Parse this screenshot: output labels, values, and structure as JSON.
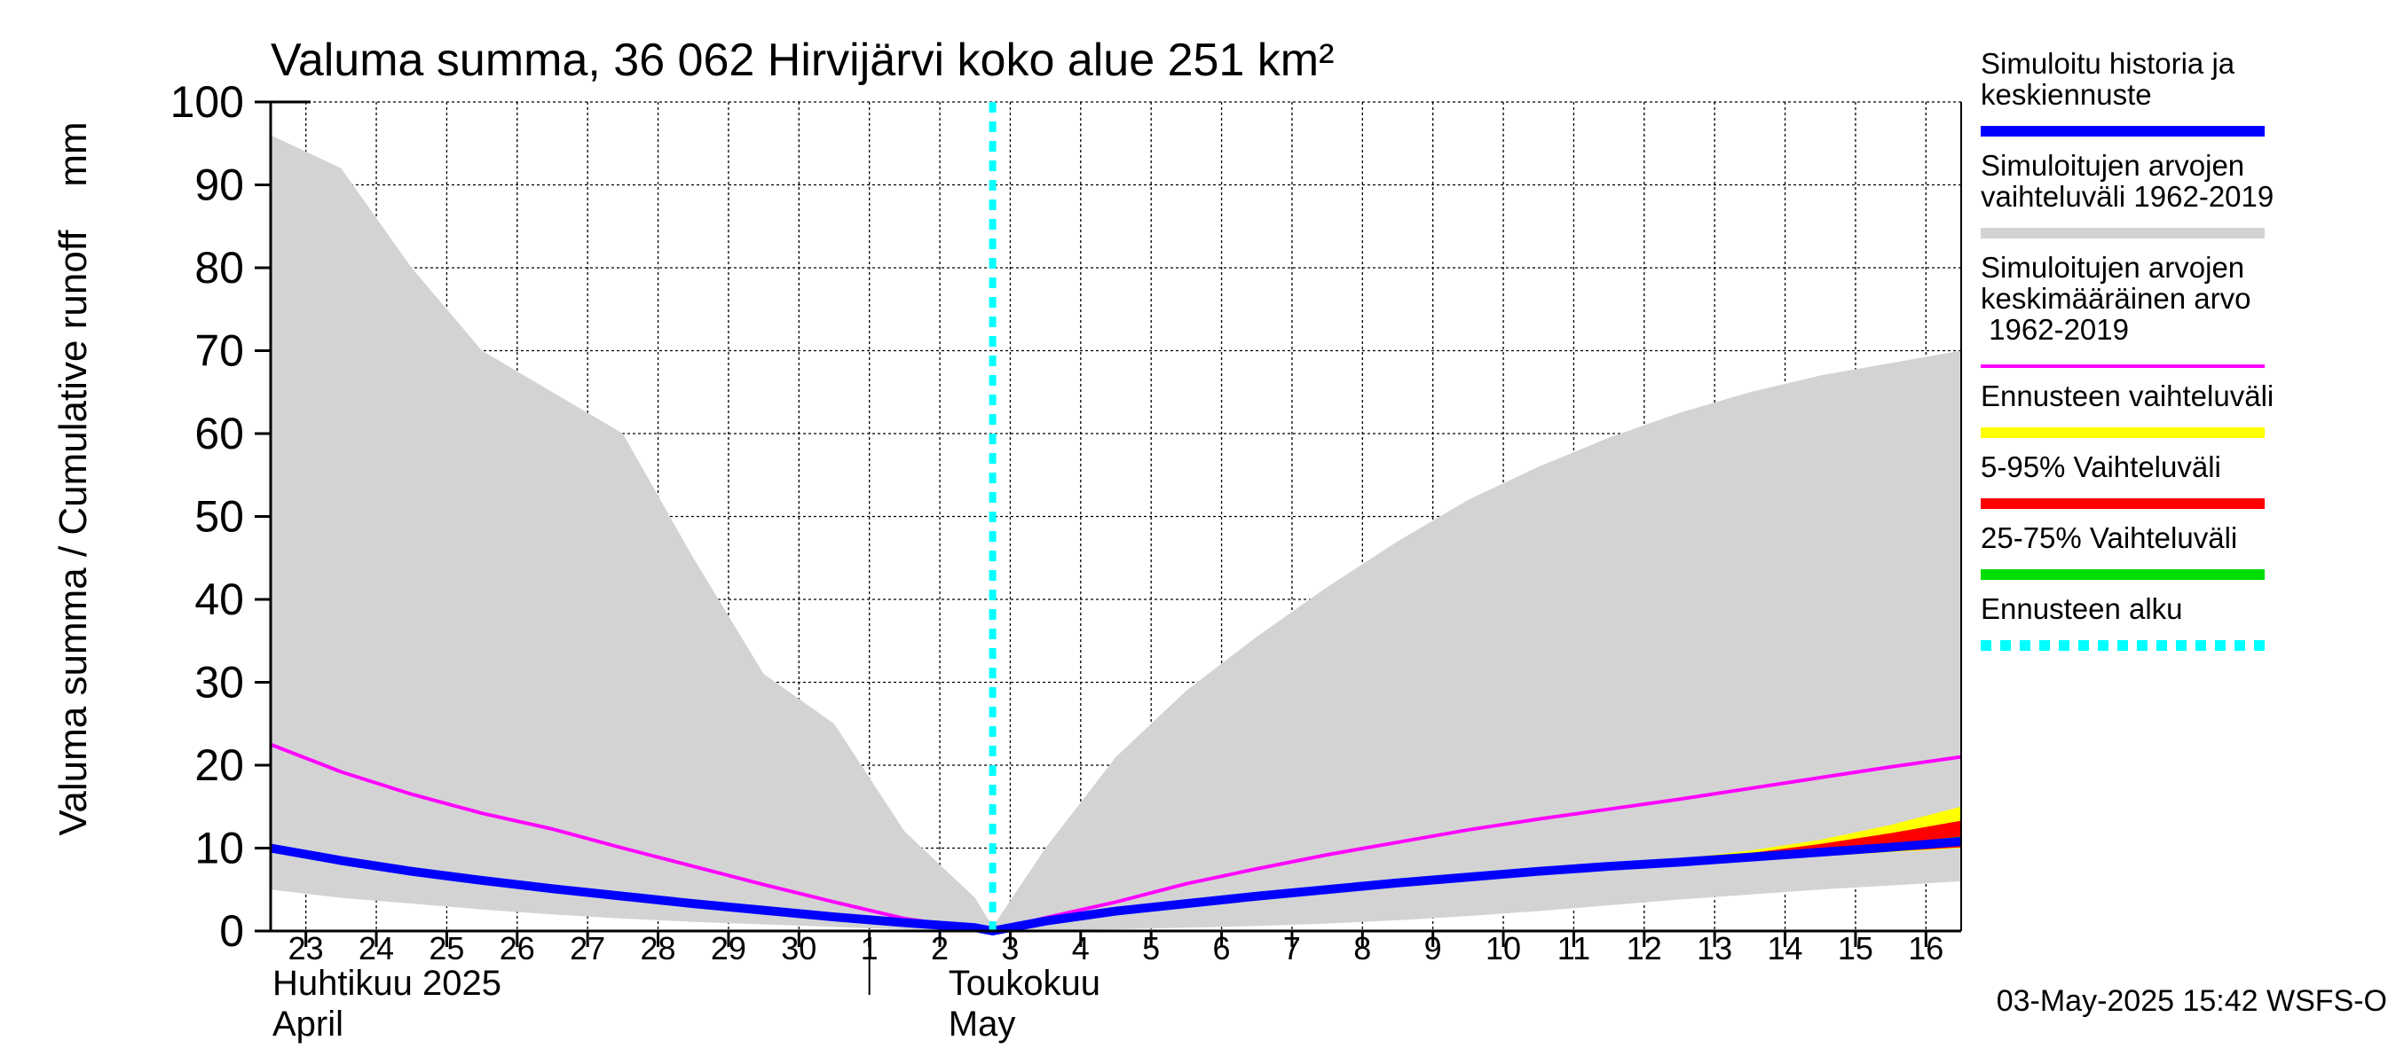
{
  "chart_data": {
    "type": "area",
    "title": "Valuma summa, 36 062 Hirvijärvi koko alue 251 km²",
    "ylabel": "Valuma summa / Cumulative runoff    mm",
    "ylim": [
      0,
      100
    ],
    "yticks": [
      0,
      10,
      20,
      30,
      40,
      50,
      60,
      70,
      80,
      90,
      100
    ],
    "xlim": [
      "2025-04-22T12:00",
      "2025-05-16T12:00"
    ],
    "xtick_days": [
      "2025-04-23",
      "2025-04-24",
      "2025-04-25",
      "2025-04-26",
      "2025-04-27",
      "2025-04-28",
      "2025-04-29",
      "2025-04-30",
      "2025-05-01",
      "2025-05-02",
      "2025-05-03",
      "2025-05-04",
      "2025-05-05",
      "2025-05-06",
      "2025-05-07",
      "2025-05-08",
      "2025-05-09",
      "2025-05-10",
      "2025-05-11",
      "2025-05-12",
      "2025-05-13",
      "2025-05-14",
      "2025-05-15",
      "2025-05-16"
    ],
    "xtick_labels": [
      "23",
      "24",
      "25",
      "26",
      "27",
      "28",
      "29",
      "30",
      "1",
      "2",
      "3",
      "4",
      "5",
      "6",
      "7",
      "8",
      "9",
      "10",
      "11",
      "12",
      "13",
      "14",
      "15",
      "16"
    ],
    "month_labels": [
      {
        "line1": "Huhtikuu  2025",
        "line2": "April",
        "date": "2025-04-22T12:00"
      },
      {
        "line1": "Toukokuu",
        "line2": "May",
        "date": "2025-05-02T12:00"
      }
    ],
    "grid": true,
    "forecast_start": "2025-05-02T18:00",
    "series": [
      {
        "name": "Simuloitujen arvojen vaihteluväli 1962-2019",
        "kind": "band",
        "color": "#d3d3d3",
        "x": [
          "2025-04-22T12:00",
          "2025-04-23T12:00",
          "2025-04-24T12:00",
          "2025-04-25T12:00",
          "2025-04-26T12:00",
          "2025-04-27T12:00",
          "2025-04-28T12:00",
          "2025-04-29T12:00",
          "2025-04-30T12:00",
          "2025-05-01T12:00",
          "2025-05-02T12:00",
          "2025-05-02T18:00",
          "2025-05-03T12:00",
          "2025-05-04T12:00",
          "2025-05-05T12:00",
          "2025-05-06T12:00",
          "2025-05-07T12:00",
          "2025-05-08T12:00",
          "2025-05-09T12:00",
          "2025-05-10T12:00",
          "2025-05-11T12:00",
          "2025-05-12T12:00",
          "2025-05-13T12:00",
          "2025-05-14T12:00",
          "2025-05-15T12:00",
          "2025-05-16T12:00"
        ],
        "upper": [
          96,
          92,
          80,
          70,
          65,
          60,
          45,
          31,
          25,
          12,
          4,
          0.5,
          10,
          21,
          29,
          35.5,
          41.5,
          47,
          52,
          56,
          59.5,
          62.5,
          65,
          67,
          68.5,
          70
        ],
        "lower": [
          5,
          4,
          3.3,
          2.6,
          2,
          1.5,
          1.1,
          0.8,
          0.5,
          0.2,
          0.1,
          0,
          0.05,
          0.2,
          0.4,
          0.6,
          0.9,
          1.3,
          1.8,
          2.4,
          3.1,
          3.8,
          4.4,
          5,
          5.5,
          6
        ]
      },
      {
        "name": "Ennusteen vaihteluväli",
        "kind": "band",
        "color": "#ffff00",
        "x": [
          "2025-05-02T18:00",
          "2025-05-03T12:00",
          "2025-05-04T12:00",
          "2025-05-05T12:00",
          "2025-05-06T12:00",
          "2025-05-07T12:00",
          "2025-05-08T12:00",
          "2025-05-09T12:00",
          "2025-05-10T12:00",
          "2025-05-11T12:00",
          "2025-05-12T12:00",
          "2025-05-13T12:00",
          "2025-05-14T12:00",
          "2025-05-15T12:00",
          "2025-05-16T12:00"
        ],
        "upper": [
          0.2,
          1.2,
          2.4,
          3.3,
          4.2,
          5,
          5.8,
          6.5,
          7.2,
          7.9,
          8.7,
          9.7,
          11,
          12.8,
          15
        ],
        "lower": [
          0.2,
          1.2,
          2.4,
          3.3,
          4.2,
          5,
          5.8,
          6.5,
          7.1,
          7.6,
          8.1,
          8.6,
          9,
          9.5,
          10
        ]
      },
      {
        "name": "5-95% Vaihteluväli",
        "kind": "band",
        "color": "#ff0000",
        "x": [
          "2025-05-02T18:00",
          "2025-05-03T12:00",
          "2025-05-04T12:00",
          "2025-05-05T12:00",
          "2025-05-06T12:00",
          "2025-05-07T12:00",
          "2025-05-08T12:00",
          "2025-05-09T12:00",
          "2025-05-10T12:00",
          "2025-05-11T12:00",
          "2025-05-12T12:00",
          "2025-05-13T12:00",
          "2025-05-14T12:00",
          "2025-05-15T12:00",
          "2025-05-16T12:00"
        ],
        "upper": [
          0.2,
          1.2,
          2.4,
          3.3,
          4.2,
          5,
          5.8,
          6.5,
          7.2,
          7.9,
          8.6,
          9.4,
          10.5,
          11.8,
          13.3
        ],
        "lower": [
          0.2,
          1.2,
          2.4,
          3.3,
          4.2,
          5,
          5.8,
          6.5,
          7.1,
          7.6,
          8.1,
          8.6,
          9.1,
          9.6,
          10.1
        ]
      },
      {
        "name": "25-75% Vaihteluväli",
        "kind": "band",
        "color": "#00dd00",
        "x": [
          "2025-05-02T18:00",
          "2025-05-03T12:00",
          "2025-05-04T12:00",
          "2025-05-05T12:00",
          "2025-05-06T12:00",
          "2025-05-07T12:00",
          "2025-05-08T12:00",
          "2025-05-09T12:00",
          "2025-05-10T12:00",
          "2025-05-11T12:00",
          "2025-05-12T12:00",
          "2025-05-13T12:00",
          "2025-05-14T12:00",
          "2025-05-15T12:00",
          "2025-05-16T12:00"
        ],
        "upper": [
          0.2,
          1.2,
          2.4,
          3.3,
          4.2,
          5,
          5.8,
          6.5,
          7.2,
          7.8,
          8.4,
          9,
          9.7,
          10.5,
          11.4
        ],
        "lower": [
          0.2,
          1.2,
          2.4,
          3.3,
          4.2,
          5,
          5.8,
          6.5,
          7.1,
          7.7,
          8.2,
          8.7,
          9.2,
          9.8,
          10.4
        ]
      },
      {
        "name": "Simuloitujen arvojen keskimääräinen arvo 1962-2019",
        "kind": "line",
        "color": "#ff00ff",
        "x": [
          "2025-04-22T12:00",
          "2025-04-23T12:00",
          "2025-04-24T12:00",
          "2025-04-25T12:00",
          "2025-04-26T12:00",
          "2025-04-27T12:00",
          "2025-04-28T12:00",
          "2025-04-29T12:00",
          "2025-04-30T12:00",
          "2025-05-01T12:00",
          "2025-05-02T12:00",
          "2025-05-02T18:00",
          "2025-05-03T12:00",
          "2025-05-04T12:00",
          "2025-05-05T12:00",
          "2025-05-06T12:00",
          "2025-05-07T12:00",
          "2025-05-08T12:00",
          "2025-05-09T12:00",
          "2025-05-10T12:00",
          "2025-05-11T12:00",
          "2025-05-12T12:00",
          "2025-05-13T12:00",
          "2025-05-14T12:00",
          "2025-05-15T12:00",
          "2025-05-16T12:00"
        ],
        "y": [
          22.5,
          19.2,
          16.5,
          14.2,
          12.3,
          10,
          7.8,
          5.6,
          3.5,
          1.5,
          0.3,
          0,
          1.6,
          3.5,
          5.7,
          7.5,
          9.2,
          10.7,
          12.2,
          13.5,
          14.7,
          15.9,
          17.2,
          18.5,
          19.8,
          21
        ]
      },
      {
        "name": "Simuloitu historia ja keskiennuste",
        "kind": "line",
        "color": "#0000ff",
        "x": [
          "2025-04-22T12:00",
          "2025-04-23T12:00",
          "2025-04-24T12:00",
          "2025-04-25T12:00",
          "2025-04-26T12:00",
          "2025-04-27T12:00",
          "2025-04-28T12:00",
          "2025-04-29T12:00",
          "2025-04-30T12:00",
          "2025-05-01T12:00",
          "2025-05-02T12:00",
          "2025-05-02T18:00",
          "2025-05-03T12:00",
          "2025-05-04T12:00",
          "2025-05-05T12:00",
          "2025-05-06T12:00",
          "2025-05-07T12:00",
          "2025-05-08T12:00",
          "2025-05-09T12:00",
          "2025-05-10T12:00",
          "2025-05-11T12:00",
          "2025-05-12T12:00",
          "2025-05-13T12:00",
          "2025-05-14T12:00",
          "2025-05-15T12:00",
          "2025-05-16T12:00"
        ],
        "y": [
          10,
          8.5,
          7.2,
          6.1,
          5.1,
          4.2,
          3.3,
          2.5,
          1.7,
          1,
          0.4,
          0,
          1.2,
          2.4,
          3.3,
          4.2,
          5,
          5.8,
          6.5,
          7.2,
          7.8,
          8.3,
          8.9,
          9.5,
          10.1,
          10.8
        ]
      }
    ],
    "legend": {
      "placement": "right",
      "entries": [
        {
          "label": "Simuloitu historia ja\nkeskiennuste",
          "color": "#0000ff",
          "style": "solid"
        },
        {
          "label": "Simuloitujen arvojen\nvaihteluväli 1962-2019",
          "color": "#d3d3d3",
          "style": "solid"
        },
        {
          "label": "Simuloitujen arvojen\nkeskimääräinen arvo\n   1962-2019",
          "color": "#ff00ff",
          "style": "thin"
        },
        {
          "label": "Ennusteen vaihteluväli",
          "color": "#ffff00",
          "style": "solid"
        },
        {
          "label": "5-95% Vaihteluväli",
          "color": "#ff0000",
          "style": "solid"
        },
        {
          "label": "25-75% Vaihteluväli",
          "color": "#00dd00",
          "style": "solid"
        },
        {
          "label": "Ennusteen alku",
          "color": "#00ffff",
          "style": "dashed"
        }
      ]
    },
    "footer": "03-May-2025 15:42 WSFS-O"
  }
}
